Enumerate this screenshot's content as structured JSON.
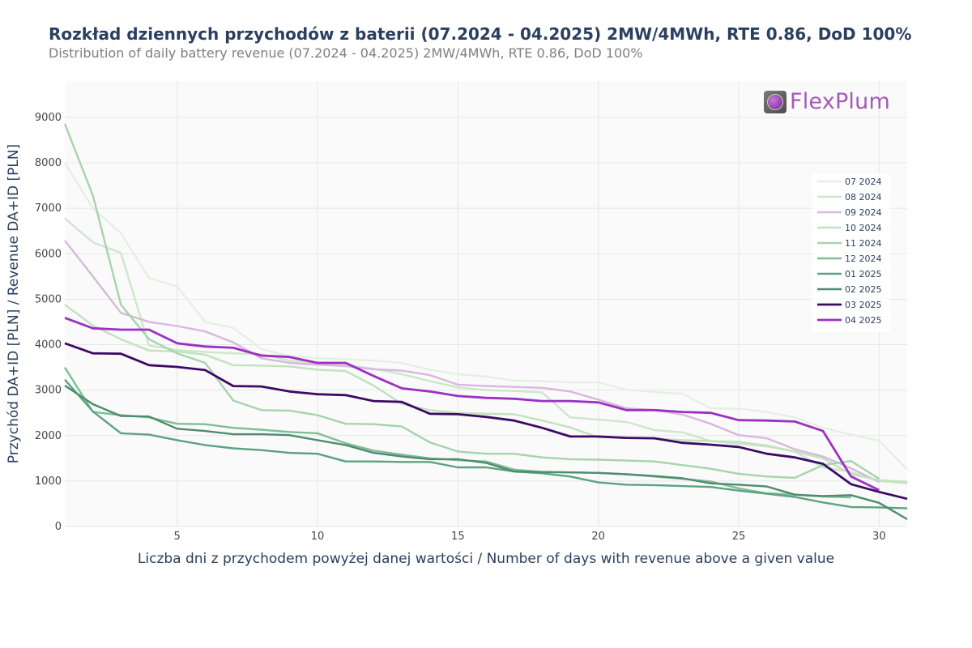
{
  "title": "Rozkład dziennych przychodów z baterii (07.2024 - 04.2025) 2MW/4MWh, RTE 0.86, DoD 100%",
  "subtitle": "Distribution of daily battery revenue (07.2024 - 04.2025) 2MW/4MWh, RTE 0.86, DoD 100%",
  "logo": {
    "text": "FlexPlum",
    "icon": "plum-icon"
  },
  "chart_data": {
    "type": "line",
    "title": "Rozkład dziennych przychodów z baterii (07.2024 - 04.2025) 2MW/4MWh, RTE 0.86, DoD 100%",
    "subtitle": "Distribution of daily battery revenue (07.2024 - 04.2025) 2MW/4MWh, RTE 0.86, DoD 100%",
    "xlabel": "Liczba dni z przychodem powyżej danej wartości / Number of days with revenue above a given value",
    "ylabel": "Przychód DA+ID [PLN] / Revenue DA+ID [PLN]",
    "xlim": [
      1,
      31
    ],
    "ylim": [
      0,
      9800
    ],
    "xticks": [
      5,
      10,
      15,
      20,
      25,
      30
    ],
    "yticks": [
      0,
      1000,
      2000,
      3000,
      4000,
      5000,
      6000,
      7000,
      8000,
      9000
    ],
    "grid": true,
    "legend_position": "right",
    "series": [
      {
        "name": "07 2024",
        "color": "#e3f1e1",
        "values": [
          8000,
          7000,
          6450,
          5470,
          5280,
          4500,
          4370,
          3900,
          3750,
          3700,
          3680,
          3650,
          3600,
          3450,
          3350,
          3300,
          3210,
          3200,
          3170,
          3170,
          3010,
          2960,
          2920,
          2600,
          2590,
          2520,
          2400,
          2170,
          2020,
          1890,
          1250
        ]
      },
      {
        "name": "08 2024",
        "color": "#cfe6cb",
        "values": [
          6780,
          6250,
          6020,
          3980,
          3880,
          3840,
          3810,
          3790,
          3650,
          3600,
          3550,
          3470,
          3350,
          3200,
          3060,
          3000,
          2980,
          2950,
          2400,
          2350,
          2300,
          2120,
          2070,
          1880,
          1820,
          1760,
          1650,
          1300,
          1200,
          1000,
          950
        ]
      },
      {
        "name": "09 2024",
        "color": "#d8b8dd",
        "values": [
          6290,
          5500,
          4700,
          4500,
          4410,
          4290,
          4050,
          3700,
          3600,
          3560,
          3530,
          3460,
          3430,
          3330,
          3120,
          3090,
          3070,
          3050,
          2970,
          2790,
          2600,
          2560,
          2460,
          2260,
          2010,
          1940,
          1700,
          1540,
          1280,
          980,
          null
        ]
      },
      {
        "name": "10 2024",
        "color": "#c2e2bf",
        "values": [
          4880,
          4420,
          4120,
          3870,
          3850,
          3780,
          3550,
          3540,
          3520,
          3450,
          3420,
          3100,
          2700,
          2560,
          2500,
          2480,
          2470,
          2330,
          2180,
          1960,
          1960,
          1940,
          1900,
          1880,
          1860,
          1780,
          1650,
          1500,
          1150,
          1020,
          980
        ]
      },
      {
        "name": "11 2024",
        "color": "#a6d4ab",
        "values": [
          8860,
          7280,
          4880,
          4120,
          3810,
          3600,
          2770,
          2560,
          2550,
          2450,
          2260,
          2250,
          2200,
          1850,
          1650,
          1600,
          1600,
          1520,
          1480,
          1470,
          1450,
          1430,
          1350,
          1270,
          1160,
          1100,
          1070,
          1350,
          1440,
          1050,
          null
        ]
      },
      {
        "name": "12 2024",
        "color": "#7fbe94",
        "values": [
          3500,
          2520,
          2450,
          2400,
          2260,
          2250,
          2170,
          2130,
          2080,
          2050,
          1830,
          1670,
          1580,
          1500,
          1460,
          1430,
          1250,
          1200,
          1190,
          1180,
          1150,
          1100,
          1050,
          990,
          840,
          730,
          700,
          660,
          640,
          null,
          null
        ]
      },
      {
        "name": "01 2025",
        "color": "#5ba37f",
        "values": [
          3230,
          2530,
          2050,
          2020,
          1900,
          1790,
          1720,
          1680,
          1620,
          1600,
          1430,
          1430,
          1420,
          1420,
          1300,
          1300,
          1210,
          1170,
          1100,
          970,
          920,
          910,
          890,
          870,
          790,
          720,
          650,
          530,
          430,
          420,
          400
        ]
      },
      {
        "name": "02 2025",
        "color": "#4e8c6f",
        "values": [
          3100,
          2690,
          2430,
          2420,
          2150,
          2100,
          2030,
          2030,
          2010,
          1900,
          1790,
          1620,
          1540,
          1480,
          1480,
          1400,
          1210,
          1200,
          1190,
          1180,
          1150,
          1110,
          1060,
          950,
          920,
          880,
          700,
          670,
          690,
          520,
          160
        ]
      },
      {
        "name": "03 2025",
        "color": "#3d0a66",
        "values": [
          4030,
          3810,
          3800,
          3550,
          3510,
          3440,
          3090,
          3080,
          2970,
          2910,
          2890,
          2760,
          2740,
          2480,
          2470,
          2410,
          2330,
          2170,
          1980,
          1980,
          1950,
          1940,
          1840,
          1800,
          1750,
          1600,
          1520,
          1380,
          930,
          760,
          610
        ]
      },
      {
        "name": "04 2025",
        "color": "#9b30c2",
        "values": [
          4590,
          4360,
          4330,
          4330,
          4030,
          3960,
          3930,
          3760,
          3730,
          3600,
          3600,
          3310,
          3040,
          2970,
          2870,
          2830,
          2810,
          2760,
          2760,
          2730,
          2560,
          2560,
          2520,
          2500,
          2340,
          2330,
          2310,
          2100,
          1100,
          800,
          null
        ]
      }
    ]
  }
}
